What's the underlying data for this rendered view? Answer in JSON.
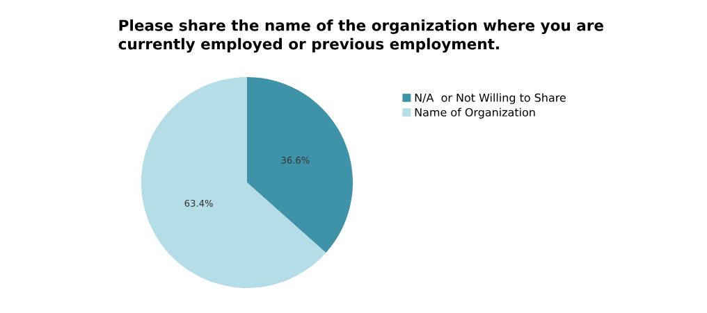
{
  "chart_data": {
    "type": "pie",
    "title": "Please share the name of the organization where you are\ncurrently employed or previous employment.",
    "categories": [
      "N/A  or Not Willing to Share",
      "Name of Organization"
    ],
    "values": [
      36.6,
      63.4
    ],
    "colors": [
      "#3f93a8",
      "#b4dde7"
    ],
    "value_labels": [
      "36.6%",
      "63.4%"
    ],
    "legend": "top right"
  }
}
